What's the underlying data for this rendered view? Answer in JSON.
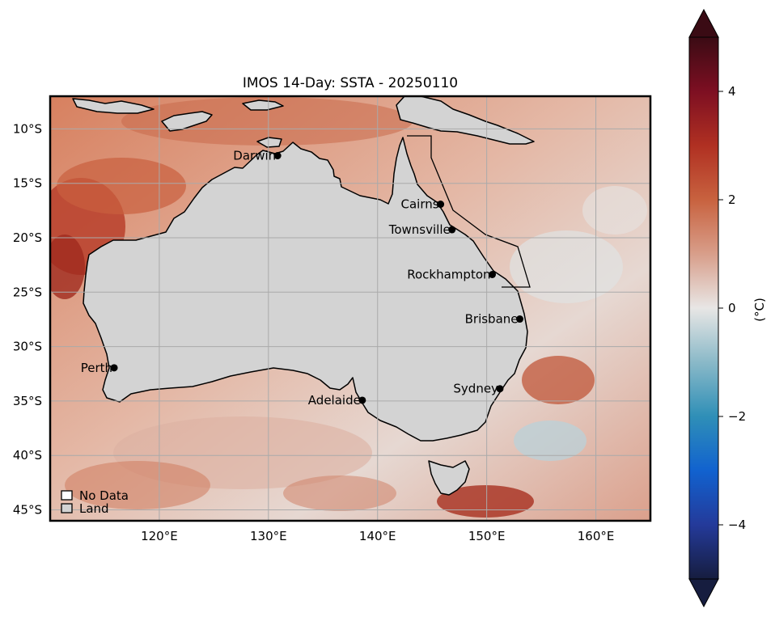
{
  "title": "IMOS 14-Day: SSTA - 20250110",
  "map": {
    "lon_range": [
      110,
      165
    ],
    "lat_range": [
      -46,
      -7
    ],
    "grid": true,
    "colormap": "balance (diverging: navy - blue - teal - white - salmon - red - dark red)",
    "lon_ticks": [
      {
        "value": 120,
        "label": "120°E"
      },
      {
        "value": 130,
        "label": "130°E"
      },
      {
        "value": 140,
        "label": "140°E"
      },
      {
        "value": 150,
        "label": "150°E"
      },
      {
        "value": 160,
        "label": "160°E"
      }
    ],
    "lat_ticks": [
      {
        "value": -10,
        "label": "10°S"
      },
      {
        "value": -15,
        "label": "15°S"
      },
      {
        "value": -20,
        "label": "20°S"
      },
      {
        "value": -25,
        "label": "25°S"
      },
      {
        "value": -30,
        "label": "30°S"
      },
      {
        "value": -35,
        "label": "35°S"
      },
      {
        "value": -40,
        "label": "40°S"
      },
      {
        "value": -45,
        "label": "45°S"
      }
    ],
    "cities": [
      {
        "name": "Darwin",
        "lon": 130.84,
        "lat": -12.46
      },
      {
        "name": "Cairns",
        "lon": 145.77,
        "lat": -16.92
      },
      {
        "name": "Townsville",
        "lon": 146.82,
        "lat": -19.26
      },
      {
        "name": "Rockhampton",
        "lon": 150.51,
        "lat": -23.38
      },
      {
        "name": "Brisbane",
        "lon": 153.03,
        "lat": -27.47
      },
      {
        "name": "Perth",
        "lon": 115.86,
        "lat": -31.95
      },
      {
        "name": "Sydney",
        "lon": 151.21,
        "lat": -33.87
      },
      {
        "name": "Adelaide",
        "lon": 138.6,
        "lat": -34.93
      }
    ],
    "legend": [
      {
        "label": "No Data",
        "color": "#ffffff"
      },
      {
        "label": "Land",
        "color": "#d3d3d3"
      }
    ],
    "land_color": "#d3d3d3"
  },
  "colorbar": {
    "label": "(°C)",
    "range": [
      -5,
      5
    ],
    "extend": "both",
    "ticks": [
      {
        "value": 4,
        "label": "4"
      },
      {
        "value": 2,
        "label": "2"
      },
      {
        "value": 0,
        "label": "0"
      },
      {
        "value": -2,
        "label": "−2"
      },
      {
        "value": -4,
        "label": "−4"
      }
    ],
    "colors": [
      "#161d3f",
      "#243a9a",
      "#1162cf",
      "#2f8fb7",
      "#8ab9c8",
      "#e8e6e5",
      "#d89e8a",
      "#c8623f",
      "#b03022",
      "#7d0f22",
      "#3a0b14"
    ]
  }
}
